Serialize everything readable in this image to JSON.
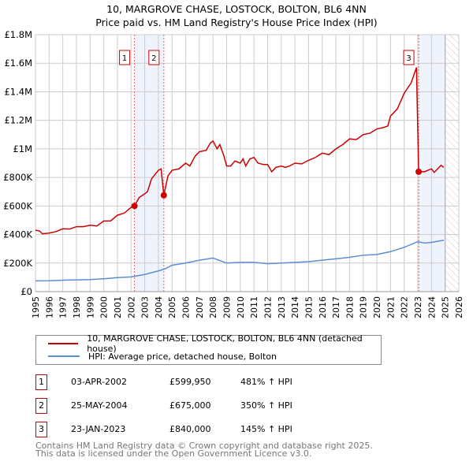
{
  "title": "10, MARGROVE CHASE, LOSTOCK, BOLTON, BL6 4NN",
  "subtitle": "Price paid vs. HM Land Registry's House Price Index (HPI)",
  "chart_data": {
    "type": "line",
    "title": "10, MARGROVE CHASE, LOSTOCK, BOLTON, BL6 4NN",
    "subtitle": "Price paid vs. HM Land Registry's House Price Index (HPI)",
    "xlim": [
      1995,
      2026
    ],
    "ylim": [
      0,
      1800000
    ],
    "x_ticks": [
      "1995",
      "1996",
      "1997",
      "1998",
      "1999",
      "2000",
      "2001",
      "2002",
      "2003",
      "2004",
      "2005",
      "2006",
      "2007",
      "2008",
      "2009",
      "2010",
      "2011",
      "2012",
      "2013",
      "2014",
      "2015",
      "2016",
      "2017",
      "2018",
      "2019",
      "2020",
      "2021",
      "2022",
      "2023",
      "2024",
      "2025",
      "2026"
    ],
    "y_ticks": [
      {
        "v": 0,
        "l": "£0"
      },
      {
        "v": 200000,
        "l": "£200K"
      },
      {
        "v": 400000,
        "l": "£400K"
      },
      {
        "v": 600000,
        "l": "£600K"
      },
      {
        "v": 800000,
        "l": "£800K"
      },
      {
        "v": 1000000,
        "l": "£1M"
      },
      {
        "v": 1200000,
        "l": "£1.2M"
      },
      {
        "v": 1400000,
        "l": "£1.4M"
      },
      {
        "v": 1600000,
        "l": "£1.6M"
      },
      {
        "v": 1800000,
        "l": "£1.8M"
      }
    ],
    "grid": true,
    "shaded_ranges": [
      [
        2002.25,
        2004.4
      ],
      [
        2023.06,
        2025.0
      ]
    ],
    "hatched_from": 2025.0,
    "series": [
      {
        "name": "10, MARGROVE CHASE, LOSTOCK, BOLTON, BL6 4NN (detached house)",
        "color": "#cc0000",
        "points": [
          [
            1995,
            430
          ],
          [
            1995.3,
            425
          ],
          [
            1995.5,
            405
          ],
          [
            1996,
            410
          ],
          [
            1996.5,
            420
          ],
          [
            1997,
            440
          ],
          [
            1997.5,
            438
          ],
          [
            1998,
            455
          ],
          [
            1998.5,
            455
          ],
          [
            1999,
            465
          ],
          [
            1999.5,
            460
          ],
          [
            2000,
            495
          ],
          [
            2000.5,
            495
          ],
          [
            2001,
            535
          ],
          [
            2001.5,
            550
          ],
          [
            2002,
            590
          ],
          [
            2002.25,
            600
          ],
          [
            2002.6,
            660
          ],
          [
            2003,
            685
          ],
          [
            2003.2,
            700
          ],
          [
            2003.5,
            790
          ],
          [
            2004,
            850
          ],
          [
            2004.2,
            860
          ],
          [
            2004.4,
            675
          ],
          [
            2004.7,
            810
          ],
          [
            2005,
            850
          ],
          [
            2005.5,
            860
          ],
          [
            2006,
            900
          ],
          [
            2006.3,
            880
          ],
          [
            2006.7,
            950
          ],
          [
            2007,
            980
          ],
          [
            2007.5,
            990
          ],
          [
            2007.8,
            1040
          ],
          [
            2008,
            1055
          ],
          [
            2008.3,
            1000
          ],
          [
            2008.5,
            1030
          ],
          [
            2008.8,
            950
          ],
          [
            2009,
            880
          ],
          [
            2009.3,
            880
          ],
          [
            2009.6,
            915
          ],
          [
            2010,
            900
          ],
          [
            2010.2,
            930
          ],
          [
            2010.4,
            880
          ],
          [
            2010.7,
            930
          ],
          [
            2011,
            940
          ],
          [
            2011.3,
            900
          ],
          [
            2011.7,
            890
          ],
          [
            2012,
            890
          ],
          [
            2012.3,
            840
          ],
          [
            2012.6,
            870
          ],
          [
            2013,
            880
          ],
          [
            2013.3,
            870
          ],
          [
            2013.6,
            880
          ],
          [
            2014,
            900
          ],
          [
            2014.5,
            895
          ],
          [
            2015,
            920
          ],
          [
            2015.5,
            940
          ],
          [
            2016,
            970
          ],
          [
            2016.5,
            960
          ],
          [
            2017,
            1000
          ],
          [
            2017.5,
            1030
          ],
          [
            2018,
            1070
          ],
          [
            2018.5,
            1065
          ],
          [
            2019,
            1100
          ],
          [
            2019.5,
            1110
          ],
          [
            2020,
            1140
          ],
          [
            2020.5,
            1150
          ],
          [
            2020.8,
            1160
          ],
          [
            2021,
            1230
          ],
          [
            2021.5,
            1280
          ],
          [
            2022,
            1390
          ],
          [
            2022.5,
            1460
          ],
          [
            2022.9,
            1570
          ],
          [
            2023.06,
            840
          ],
          [
            2023.5,
            840
          ],
          [
            2024,
            860
          ],
          [
            2024.2,
            835
          ],
          [
            2024.7,
            885
          ],
          [
            2024.9,
            870
          ]
        ]
      },
      {
        "name": "HPI: Average price, detached house, Bolton",
        "color": "#5b8fd4",
        "points": [
          [
            1995,
            75
          ],
          [
            1996,
            76
          ],
          [
            1997,
            80
          ],
          [
            1998,
            82
          ],
          [
            1999,
            84
          ],
          [
            2000,
            90
          ],
          [
            2001,
            98
          ],
          [
            2002,
            103
          ],
          [
            2003,
            120
          ],
          [
            2004,
            145
          ],
          [
            2004.5,
            160
          ],
          [
            2005,
            185
          ],
          [
            2006,
            200
          ],
          [
            2007,
            220
          ],
          [
            2008,
            235
          ],
          [
            2009,
            200
          ],
          [
            2010,
            205
          ],
          [
            2011,
            205
          ],
          [
            2012,
            195
          ],
          [
            2013,
            200
          ],
          [
            2014,
            205
          ],
          [
            2015,
            210
          ],
          [
            2016,
            220
          ],
          [
            2017,
            230
          ],
          [
            2018,
            240
          ],
          [
            2019,
            255
          ],
          [
            2020,
            260
          ],
          [
            2021,
            280
          ],
          [
            2022,
            310
          ],
          [
            2023,
            350
          ],
          [
            2023.5,
            340
          ],
          [
            2024,
            345
          ],
          [
            2024.9,
            360
          ]
        ]
      }
    ],
    "y_unit_of_points": "thousands GBP",
    "sales": [
      {
        "n": "1",
        "x": 2002.25,
        "value": 599950,
        "date": "03-APR-2002",
        "price": "£599,950",
        "hpi": "481% ↑ HPI"
      },
      {
        "n": "2",
        "x": 2004.4,
        "value": 675000,
        "date": "25-MAY-2004",
        "price": "£675,000",
        "hpi": "350% ↑ HPI"
      },
      {
        "n": "3",
        "x": 2023.06,
        "value": 840000,
        "date": "23-JAN-2023",
        "price": "£840,000",
        "hpi": "145% ↑ HPI"
      }
    ]
  },
  "legend": {
    "red": "10, MARGROVE CHASE, LOSTOCK, BOLTON, BL6 4NN (detached house)",
    "blue": "HPI: Average price, detached house, Bolton"
  },
  "footer": {
    "line1": "Contains HM Land Registry data © Crown copyright and database right 2025.",
    "line2": "This data is licensed under the Open Government Licence v3.0."
  }
}
